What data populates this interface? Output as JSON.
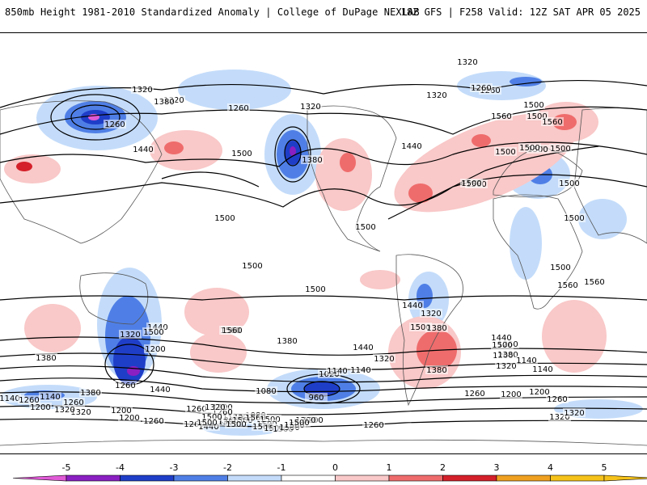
{
  "header": {
    "title": "850mb Height 1981-2010 Standardized Anomaly | College of DuPage NEXLAB",
    "run_info": "18Z GFS | F258 Valid: 12Z SAT APR 05 2025"
  },
  "colors": {
    "neg5": "#e05ad6",
    "neg4": "#8a1fc2",
    "neg3": "#1f3ec8",
    "neg2": "#4f7fe6",
    "neg1": "#c4dcfa",
    "zero": "#ffffff",
    "pos1": "#f9c8c8",
    "pos2": "#ef6c6c",
    "pos3": "#d4202a",
    "pos4": "#f0a020",
    "pos5": "#f5c21a",
    "land_outline": "#666666",
    "contour": "#000000"
  },
  "legend": {
    "ticks": [
      "-5",
      "-4",
      "-3",
      "-2",
      "-1",
      "0",
      "1",
      "2",
      "3",
      "4",
      "5"
    ]
  },
  "contour_labels": [
    "1320",
    "1320",
    "1260",
    "1320",
    "1380",
    "1440",
    "1260",
    "1500",
    "1320",
    "1380",
    "1320",
    "1260",
    "1500",
    "1560",
    "1500",
    "1560",
    "1500",
    "1500",
    "1440",
    "1560",
    "1260",
    "1500",
    "1500",
    "1500",
    "1560",
    "1500",
    "1380",
    "1440",
    "1320",
    "1440",
    "1500",
    "1560",
    "1440",
    "1380",
    "1320",
    "1260",
    "1200",
    "1140",
    "1080",
    "1020",
    "960",
    "1200",
    "1140",
    "1080",
    "1200",
    "1260",
    "1200",
    "1140",
    "1200",
    "1260",
    "1320",
    "1260",
    "1320",
    "1380",
    "1140",
    "1200",
    "1260",
    "1320",
    "1380",
    "1440",
    "1500",
    "1560",
    "1560",
    "1500",
    "1320",
    "1380",
    "1440",
    "1500",
    "1500",
    "1500",
    "1500",
    "1500",
    "1500",
    "1200",
    "1260",
    "1140",
    "1200",
    "1260",
    "1320",
    "1380",
    "1140",
    "1200",
    "1260",
    "1260",
    "1320",
    "1260",
    "1200",
    "1080",
    "1140",
    "1200",
    "1260",
    "1320",
    "1380",
    "1440",
    "1500",
    "1560",
    "1560",
    "1500",
    "1500",
    "1500",
    "1500",
    "1500",
    "1500",
    "1500",
    "1500",
    "1500",
    "1500",
    "1500"
  ]
}
